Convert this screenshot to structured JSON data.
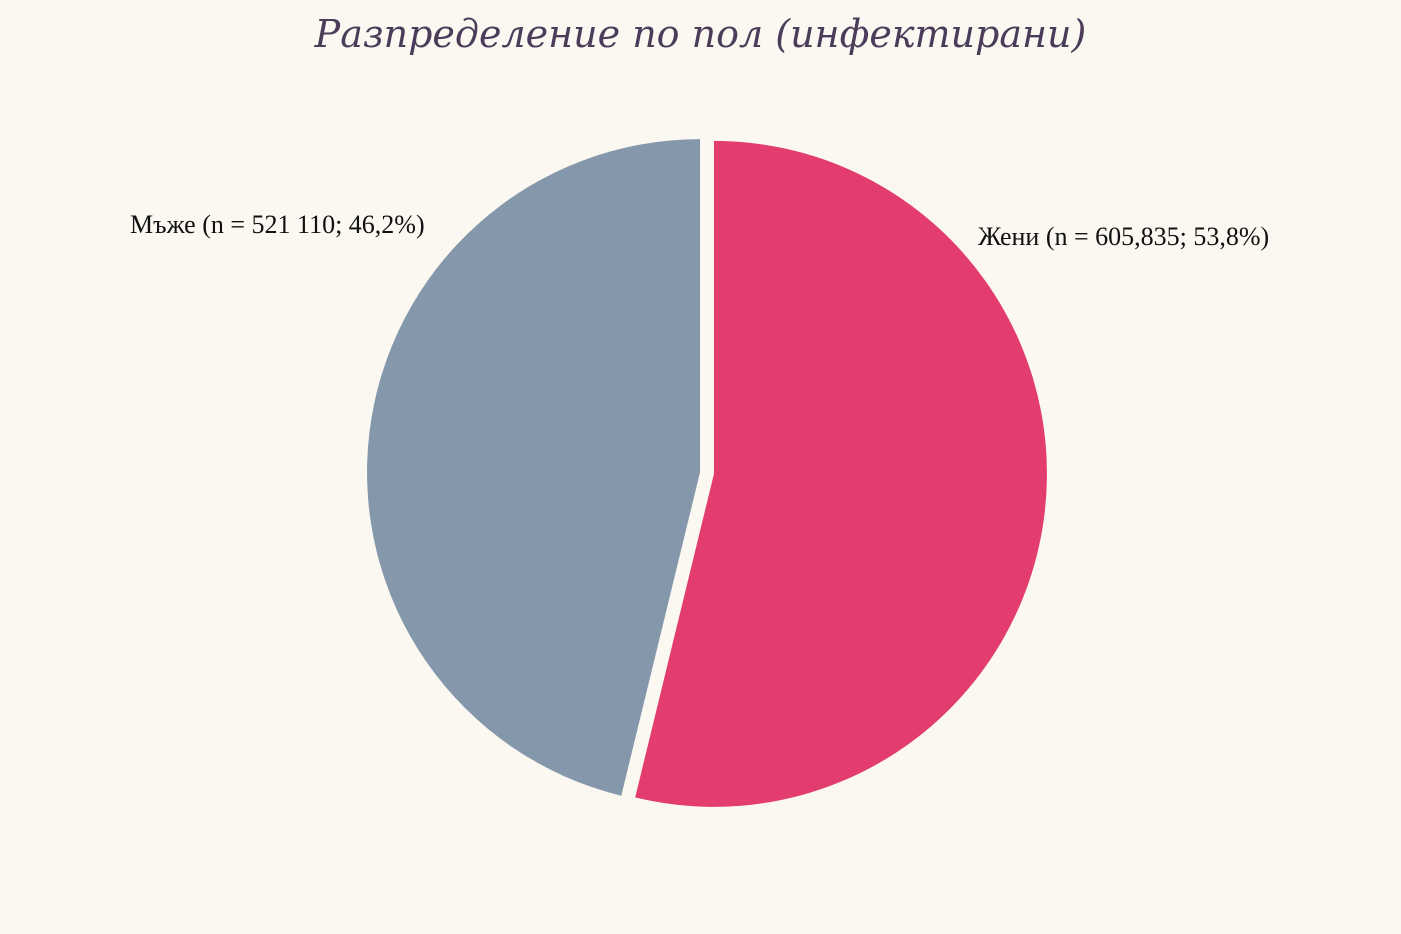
{
  "chart_data": {
    "type": "pie",
    "title": "Разпределение по пол (инфектирани)",
    "slices": [
      {
        "label": "Жени (n = 605,835; 53,8%)",
        "value": 53.8,
        "color": "#e33c6e"
      },
      {
        "label": "Мъже (n = 521 110; 46,2%)",
        "value": 46.2,
        "color": "#8597ab"
      }
    ],
    "start_angle_deg": 0,
    "direction": "clockwise",
    "background": "#faf8f1"
  }
}
